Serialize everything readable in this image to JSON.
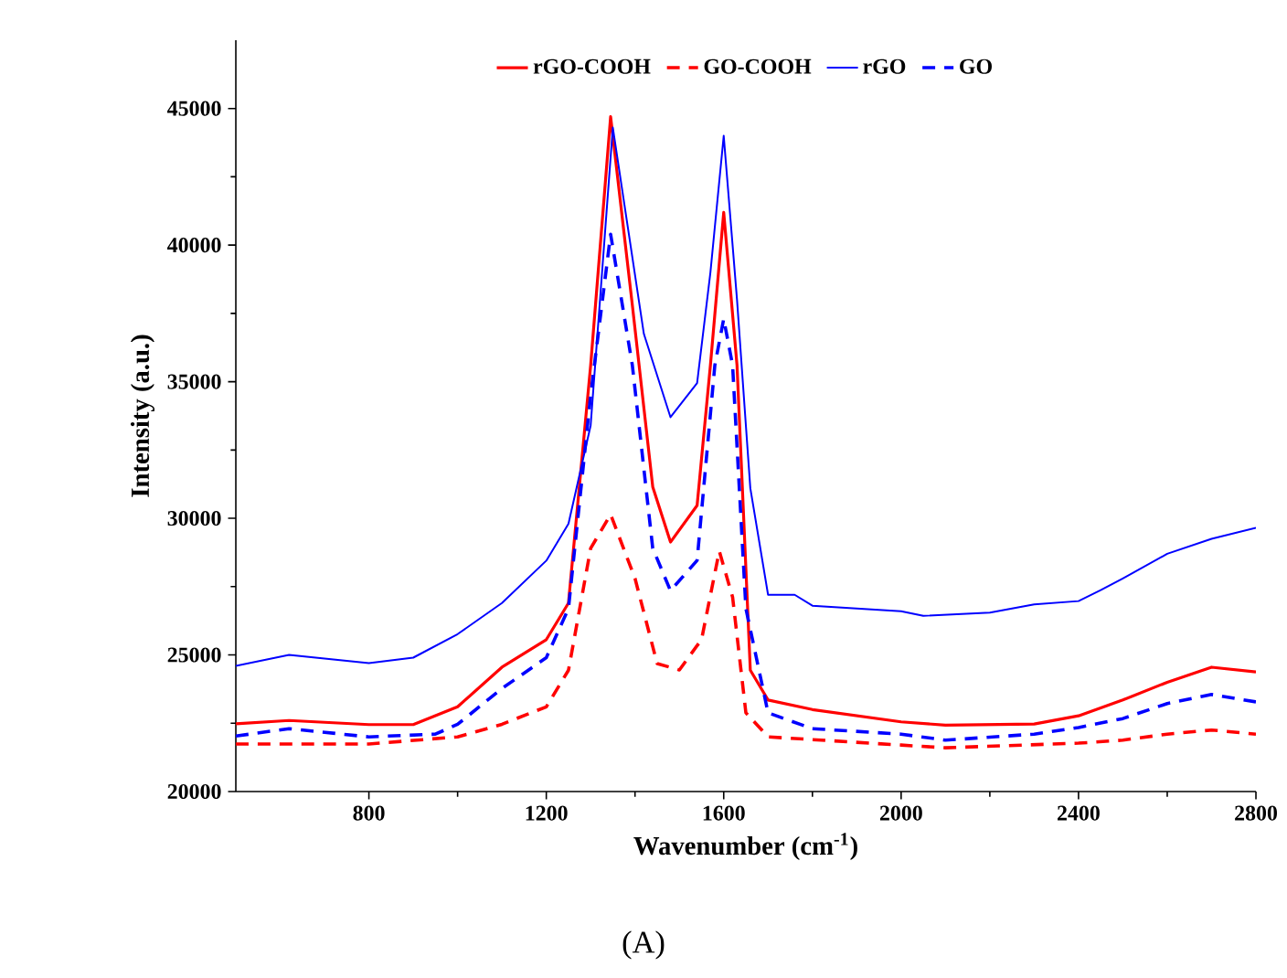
{
  "chart_data": {
    "type": "line",
    "xlabel": "Wavenumber (cm$^{-1}$)",
    "ylabel": "Intensity (a.u.)",
    "annotations": [
      "(A)"
    ],
    "xlim": [
      500,
      2800
    ],
    "xticks": [
      800,
      1200,
      1600,
      2000,
      2400,
      2800
    ],
    "ylim": [
      20000,
      47500
    ],
    "yticks": [
      20000,
      25000,
      30000,
      35000,
      40000,
      45000
    ],
    "legend": "top",
    "marker": "none",
    "grid": false,
    "series": [
      {
        "name": "rGO-COOH",
        "color": "#ff0000",
        "line_style": "solid",
        "x": [
          500,
          620,
          800,
          900,
          1000,
          1100,
          1200,
          1250,
          1300,
          1345,
          1394,
          1440,
          1480,
          1540,
          1570,
          1600,
          1630,
          1660,
          1700,
          1800,
          2000,
          2100,
          2300,
          2400,
          2500,
          2600,
          2700,
          2800
        ],
        "values": [
          22480,
          22600,
          22450,
          22450,
          23100,
          24550,
          25560,
          26900,
          35600,
          44700,
          37800,
          31150,
          29130,
          30470,
          35600,
          41200,
          35600,
          24440,
          23350,
          23000,
          22550,
          22430,
          22470,
          22770,
          23350,
          24000,
          24550,
          24380
        ]
      },
      {
        "name": "GO-COOH",
        "color": "#ff0000",
        "line_style": "dashed",
        "x": [
          500,
          800,
          1000,
          1100,
          1200,
          1250,
          1300,
          1345,
          1400,
          1450,
          1500,
          1550,
          1590,
          1620,
          1650,
          1700,
          2000,
          2100,
          2400,
          2500,
          2600,
          2700,
          2800
        ],
        "values": [
          21740,
          21740,
          22000,
          22460,
          23100,
          24440,
          28900,
          30140,
          27800,
          24680,
          24450,
          25560,
          28800,
          27120,
          22880,
          22000,
          21700,
          21600,
          21770,
          21880,
          22100,
          22250,
          22100
        ]
      },
      {
        "name": "rGO",
        "color": "#0000ff",
        "line_style": "solid",
        "x": [
          500,
          620,
          800,
          900,
          1000,
          1100,
          1200,
          1250,
          1300,
          1350,
          1420,
          1480,
          1540,
          1570,
          1600,
          1630,
          1660,
          1700,
          1760,
          1800,
          1900,
          2000,
          2050,
          2200,
          2300,
          2400,
          2450,
          2500,
          2600,
          2700,
          2800
        ],
        "values": [
          24600,
          25000,
          24700,
          24900,
          25760,
          26900,
          28450,
          29800,
          33400,
          44300,
          36750,
          33700,
          34950,
          39000,
          44000,
          38000,
          31100,
          27200,
          27200,
          26800,
          26700,
          26600,
          26430,
          26550,
          26850,
          26970,
          27370,
          27800,
          28700,
          29250,
          29650
        ]
      },
      {
        "name": "GO",
        "color": "#0000ff",
        "line_style": "dashed",
        "x": [
          500,
          620,
          800,
          950,
          1000,
          1100,
          1200,
          1250,
          1300,
          1345,
          1394,
          1440,
          1480,
          1540,
          1580,
          1600,
          1620,
          1650,
          1700,
          1800,
          2000,
          2100,
          2300,
          2400,
          2500,
          2600,
          2700,
          2800
        ],
        "values": [
          22030,
          22300,
          22000,
          22100,
          22460,
          23770,
          24900,
          26700,
          34500,
          40400,
          35600,
          28900,
          27350,
          28460,
          35600,
          37300,
          35600,
          26700,
          22880,
          22300,
          22100,
          21880,
          22100,
          22340,
          22670,
          23220,
          23550,
          23280
        ]
      }
    ]
  }
}
